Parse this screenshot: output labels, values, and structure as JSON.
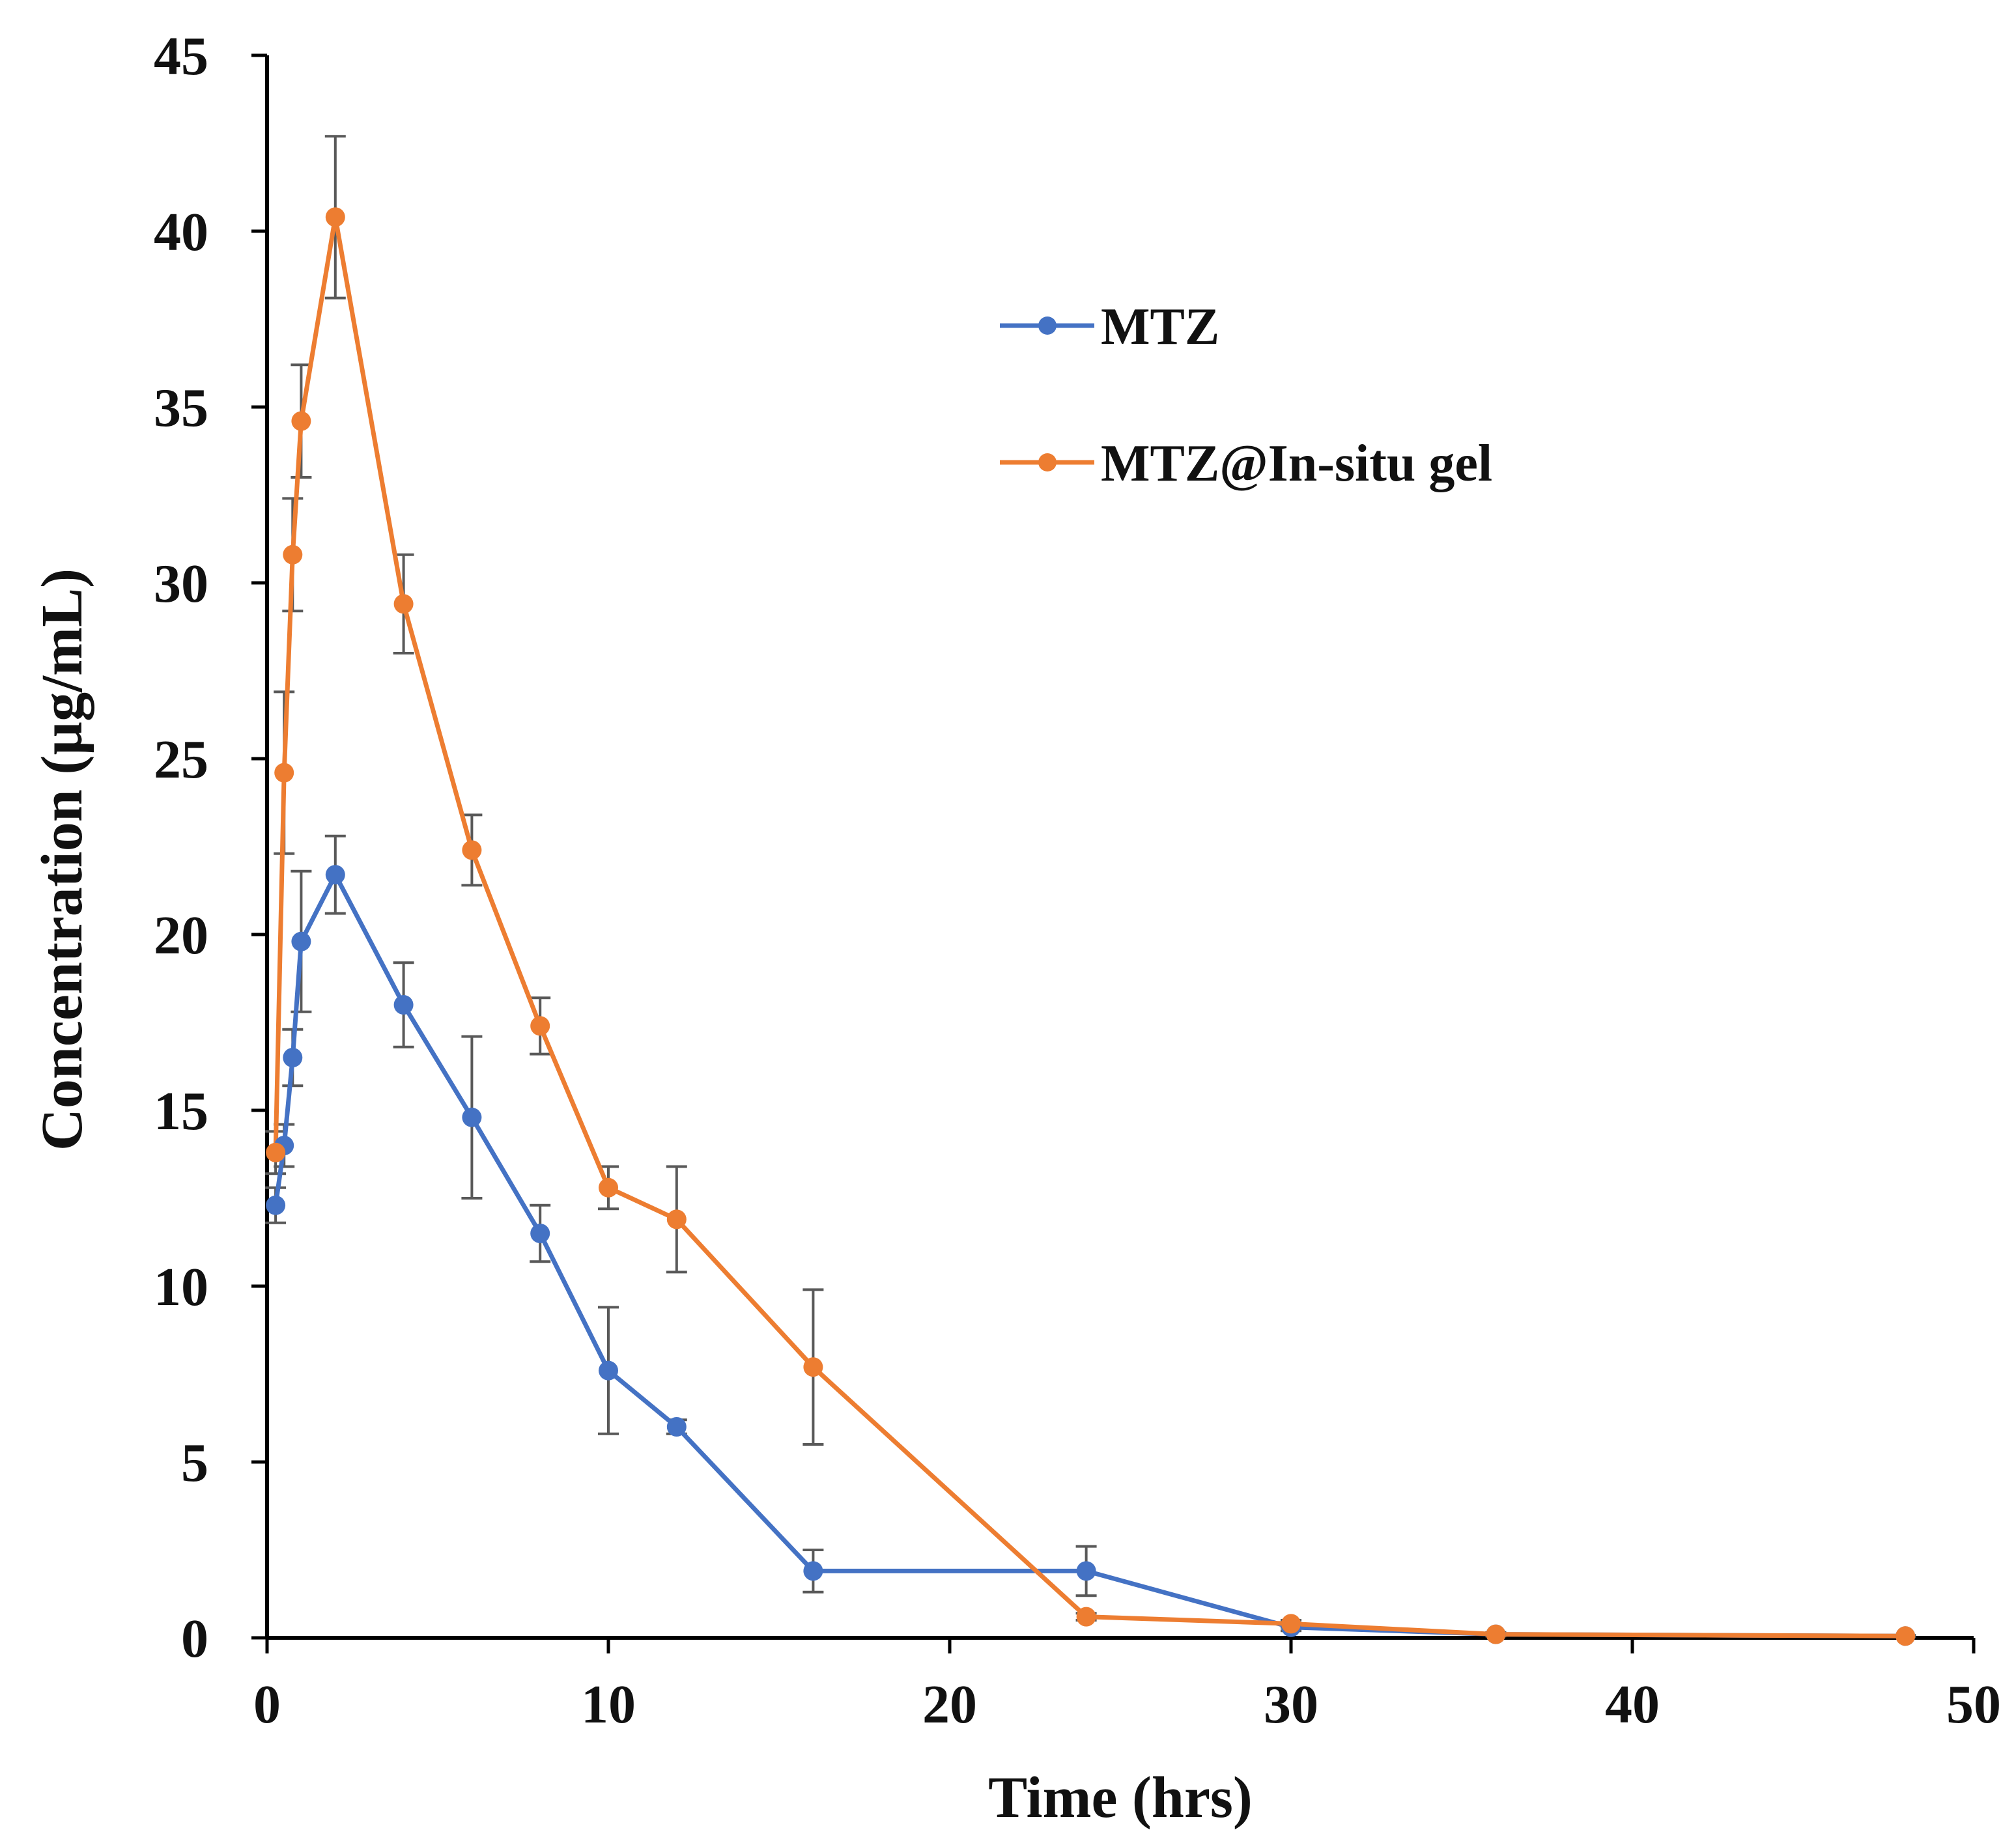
{
  "chart_data": {
    "type": "line",
    "title": "",
    "xlabel": "Time (hrs)",
    "ylabel": "Concentration (µg/mL)",
    "xlim": [
      0,
      50
    ],
    "ylim": [
      0,
      45
    ],
    "xticks": [
      0,
      10,
      20,
      30,
      40,
      50
    ],
    "yticks": [
      0,
      5,
      10,
      15,
      20,
      25,
      30,
      35,
      40,
      45
    ],
    "grid": false,
    "legend_position": "top-right",
    "error_bar_color": "#595959",
    "series": [
      {
        "name": "MTZ",
        "color": "#4472C4",
        "x": [
          0.25,
          0.5,
          0.75,
          1,
          2,
          4,
          6,
          8,
          10,
          12,
          16,
          24,
          30,
          36,
          48
        ],
        "y": [
          12.3,
          14.0,
          16.5,
          19.8,
          21.7,
          18.0,
          14.8,
          11.5,
          7.6,
          6.0,
          1.9,
          1.9,
          0.3,
          0.1,
          0.05
        ],
        "err": [
          0.5,
          0.6,
          0.8,
          2.0,
          1.1,
          1.2,
          2.3,
          0.8,
          1.8,
          0.2,
          0.6,
          0.7,
          0.1,
          0.05,
          0.02
        ]
      },
      {
        "name": "MTZ@In-situ gel",
        "color": "#ED7D31",
        "x": [
          0.25,
          0.5,
          0.75,
          1,
          2,
          4,
          6,
          8,
          10,
          12,
          16,
          24,
          30,
          36,
          48
        ],
        "y": [
          13.8,
          24.6,
          30.8,
          34.6,
          40.4,
          29.4,
          22.4,
          17.4,
          12.8,
          11.9,
          7.7,
          0.6,
          0.4,
          0.1,
          0.05
        ],
        "err": [
          0.6,
          2.3,
          1.6,
          1.6,
          2.3,
          1.4,
          1.0,
          0.8,
          0.6,
          1.5,
          2.2,
          0.1,
          0.1,
          0.05,
          0.02
        ]
      }
    ]
  }
}
